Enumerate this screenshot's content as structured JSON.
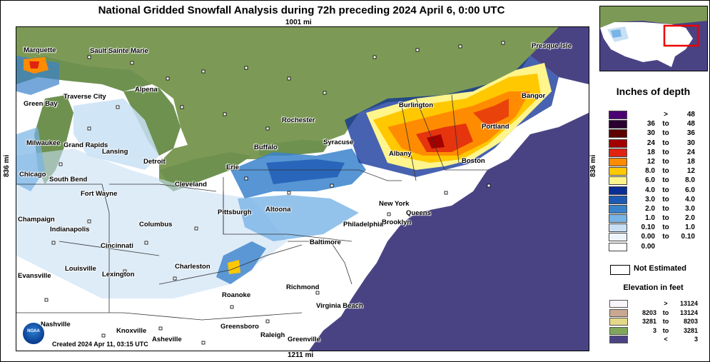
{
  "title": "National Gridded Snowfall Analysis during 72h preceding 2024 April 6, 0:00 UTC",
  "scale": {
    "top": "1001 mi",
    "bottom": "1211 mi",
    "left": "836 mi",
    "right": "836 mi"
  },
  "created": "Created 2024 Apr 11, 03:15 UTC",
  "logo_text": "NOAA",
  "cities": [
    {
      "name": "Marquette"
    },
    {
      "name": "Sault Sainte Marie"
    },
    {
      "name": "Alpena"
    },
    {
      "name": "Traverse City"
    },
    {
      "name": "Green Bay"
    },
    {
      "name": "Milwaukee"
    },
    {
      "name": "Grand Rapids"
    },
    {
      "name": "Lansing"
    },
    {
      "name": "Detroit"
    },
    {
      "name": "Chicago"
    },
    {
      "name": "South Bend"
    },
    {
      "name": "Fort Wayne"
    },
    {
      "name": "Cleveland"
    },
    {
      "name": "Erie"
    },
    {
      "name": "Buffalo"
    },
    {
      "name": "Rochester"
    },
    {
      "name": "Syracuse"
    },
    {
      "name": "Albany"
    },
    {
      "name": "Burlington"
    },
    {
      "name": "Portland"
    },
    {
      "name": "Bangor"
    },
    {
      "name": "Presque Isle"
    },
    {
      "name": "Boston"
    },
    {
      "name": "New York"
    },
    {
      "name": "Queens"
    },
    {
      "name": "Brooklyn"
    },
    {
      "name": "Philadelphia"
    },
    {
      "name": "Pittsburgh"
    },
    {
      "name": "Altoona"
    },
    {
      "name": "Baltimore"
    },
    {
      "name": "Columbus"
    },
    {
      "name": "Champaign"
    },
    {
      "name": "Indianapolis"
    },
    {
      "name": "Cincinnati"
    },
    {
      "name": "Charleston"
    },
    {
      "name": "Louisville"
    },
    {
      "name": "Lexington"
    },
    {
      "name": "Evansville"
    },
    {
      "name": "Roanoke"
    },
    {
      "name": "Richmond"
    },
    {
      "name": "Virginia Beach"
    },
    {
      "name": "Nashville"
    },
    {
      "name": "Knoxville"
    },
    {
      "name": "Greensboro"
    },
    {
      "name": "Raleigh"
    },
    {
      "name": "Greenville"
    },
    {
      "name": "Asheville"
    }
  ],
  "legend": {
    "title": "Inches of depth",
    "rows": [
      {
        "lo": "",
        "to": ">",
        "hi": "48",
        "color": "#4b0072"
      },
      {
        "lo": "36",
        "to": "to",
        "hi": "48",
        "color": "#2a0030"
      },
      {
        "lo": "30",
        "to": "to",
        "hi": "36",
        "color": "#5c0000"
      },
      {
        "lo": "24",
        "to": "to",
        "hi": "30",
        "color": "#a30000"
      },
      {
        "lo": "18",
        "to": "to",
        "hi": "24",
        "color": "#e02410"
      },
      {
        "lo": "12",
        "to": "to",
        "hi": "18",
        "color": "#ff8c00"
      },
      {
        "lo": "8.0",
        "to": "to",
        "hi": "12",
        "color": "#ffc800"
      },
      {
        "lo": "6.0",
        "to": "to",
        "hi": "8.0",
        "color": "#fff58c"
      },
      {
        "lo": "4.0",
        "to": "to",
        "hi": "6.0",
        "color": "#0a2e96"
      },
      {
        "lo": "3.0",
        "to": "to",
        "hi": "4.0",
        "color": "#1e5ab4"
      },
      {
        "lo": "2.0",
        "to": "to",
        "hi": "3.0",
        "color": "#3a82cc"
      },
      {
        "lo": "1.0",
        "to": "to",
        "hi": "2.0",
        "color": "#78b4e6"
      },
      {
        "lo": "0.10",
        "to": "to",
        "hi": "1.0",
        "color": "#c8e0f4"
      },
      {
        "lo": "0.00",
        "to": "to",
        "hi": "0.10",
        "color": "#eef4fc"
      },
      {
        "lo": "0.00",
        "to": "",
        "hi": "",
        "color": "#ffffff"
      }
    ],
    "not_estimated": "Not Estimated"
  },
  "elevation": {
    "title": "Elevation in feet",
    "rows": [
      {
        "lo": "",
        "to": ">",
        "hi": "13124",
        "color": "#fbf4fb"
      },
      {
        "lo": "8203",
        "to": "to",
        "hi": "13124",
        "color": "#c9a892"
      },
      {
        "lo": "3281",
        "to": "to",
        "hi": "8203",
        "color": "#e4d88a"
      },
      {
        "lo": "3",
        "to": "to",
        "hi": "3281",
        "color": "#7fa65a"
      },
      {
        "lo": "",
        "to": "<",
        "hi": "3",
        "color": "#4a4383"
      }
    ]
  },
  "colors": {
    "water": "#4a4383",
    "land_canada": "#7c9a56",
    "snow_none": "#ffffff"
  }
}
